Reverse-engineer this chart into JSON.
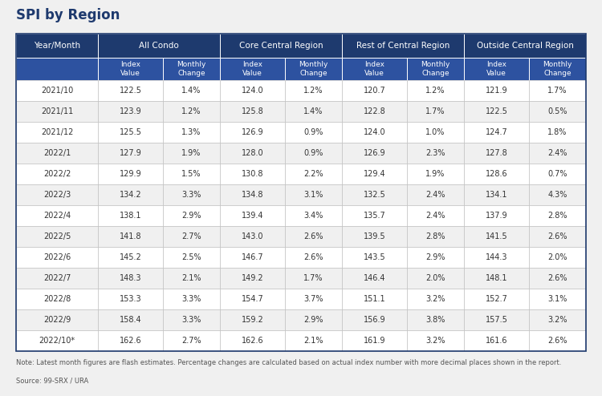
{
  "title": "SPI by Region",
  "note": "Note: Latest month figures are flash estimates. Percentage changes are calculated based on actual index number with more decimal places shown in the report.",
  "source": "Source: 99-SRX / URA",
  "header_bg": "#1e3a6e",
  "subheader_bg": "#2d52a0",
  "row_bg_odd": "#ffffff",
  "row_bg_even": "#f0f0f0",
  "border_color": "#bbbbbb",
  "header_text_color": "#ffffff",
  "data_text_color": "#333333",
  "title_color": "#1e3a6e",
  "fig_bg": "#f0f0f0",
  "col_groups": [
    "All Condo",
    "Core Central Region",
    "Rest of Central Region",
    "Outside Central Region"
  ],
  "col_subheaders": [
    "Index\nValue",
    "Monthly\nChange"
  ],
  "row_labels": [
    "2021/10",
    "2021/11",
    "2021/12",
    "2022/1",
    "2022/2",
    "2022/3",
    "2022/4",
    "2022/5",
    "2022/6",
    "2022/7",
    "2022/8",
    "2022/9",
    "2022/10*"
  ],
  "data": [
    [
      "122.5",
      "1.4%",
      "124.0",
      "1.2%",
      "120.7",
      "1.2%",
      "121.9",
      "1.7%"
    ],
    [
      "123.9",
      "1.2%",
      "125.8",
      "1.4%",
      "122.8",
      "1.7%",
      "122.5",
      "0.5%"
    ],
    [
      "125.5",
      "1.3%",
      "126.9",
      "0.9%",
      "124.0",
      "1.0%",
      "124.7",
      "1.8%"
    ],
    [
      "127.9",
      "1.9%",
      "128.0",
      "0.9%",
      "126.9",
      "2.3%",
      "127.8",
      "2.4%"
    ],
    [
      "129.9",
      "1.5%",
      "130.8",
      "2.2%",
      "129.4",
      "1.9%",
      "128.6",
      "0.7%"
    ],
    [
      "134.2",
      "3.3%",
      "134.8",
      "3.1%",
      "132.5",
      "2.4%",
      "134.1",
      "4.3%"
    ],
    [
      "138.1",
      "2.9%",
      "139.4",
      "3.4%",
      "135.7",
      "2.4%",
      "137.9",
      "2.8%"
    ],
    [
      "141.8",
      "2.7%",
      "143.0",
      "2.6%",
      "139.5",
      "2.8%",
      "141.5",
      "2.6%"
    ],
    [
      "145.2",
      "2.5%",
      "146.7",
      "2.6%",
      "143.5",
      "2.9%",
      "144.3",
      "2.0%"
    ],
    [
      "148.3",
      "2.1%",
      "149.2",
      "1.7%",
      "146.4",
      "2.0%",
      "148.1",
      "2.6%"
    ],
    [
      "153.3",
      "3.3%",
      "154.7",
      "3.7%",
      "151.1",
      "3.2%",
      "152.7",
      "3.1%"
    ],
    [
      "158.4",
      "3.3%",
      "159.2",
      "2.9%",
      "156.9",
      "3.8%",
      "157.5",
      "3.2%"
    ],
    [
      "162.6",
      "2.7%",
      "162.6",
      "2.1%",
      "161.9",
      "3.2%",
      "161.6",
      "2.6%"
    ]
  ]
}
